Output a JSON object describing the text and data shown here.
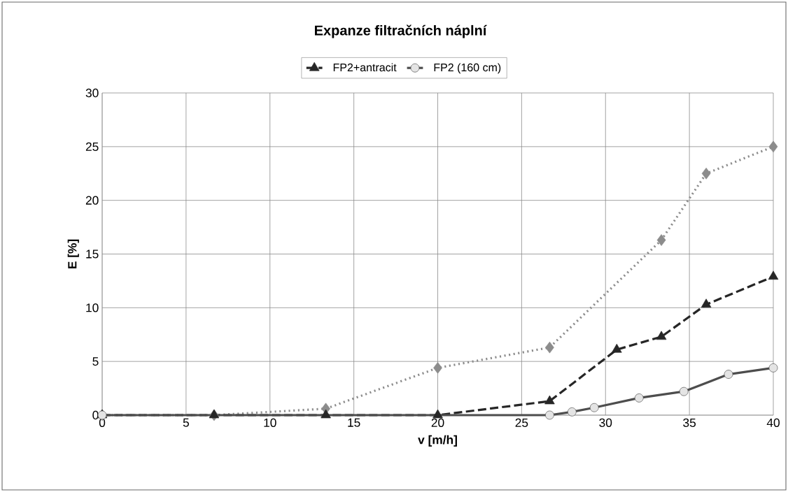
{
  "chart_data": {
    "type": "line",
    "title": "Expanze filtračních náplní",
    "xlabel": "v [m/h]",
    "ylabel": "E [%]",
    "series": [
      {
        "color": "#8c8c8c",
        "marker": "diamond",
        "line_style": "dotted",
        "x": [
          0,
          6.67,
          13.33,
          20,
          26.67,
          33.33,
          36,
          40
        ],
        "values": [
          0,
          0,
          0.6,
          4.4,
          6.3,
          16.3,
          22.5,
          25
        ]
      },
      {
        "name": "FP2+antracit",
        "color": "#262626",
        "marker": "triangle",
        "line_style": "dashed",
        "x": [
          0,
          6.67,
          13.33,
          20,
          26.67,
          30.67,
          33.33,
          36,
          40
        ],
        "values": [
          0,
          0,
          0,
          0,
          1.3,
          6.1,
          7.3,
          10.3,
          12.9
        ]
      },
      {
        "name": "FP2 (160 cm)",
        "color": "#4d4d4d",
        "marker": "circle",
        "line_style": "solid",
        "x": [
          0,
          26.67,
          28,
          29.33,
          32,
          34.67,
          37.33,
          40
        ],
        "values": [
          0,
          0,
          0.3,
          0.7,
          1.6,
          2.2,
          3.8,
          4.4
        ]
      }
    ],
    "xlim": [
      0,
      40
    ],
    "ylim": [
      0,
      30
    ],
    "xticks": [
      0,
      5,
      10,
      15,
      20,
      25,
      30,
      35,
      40
    ],
    "yticks": [
      0,
      5,
      10,
      15,
      20,
      25,
      30
    ],
    "grid": true,
    "legend": "top"
  }
}
